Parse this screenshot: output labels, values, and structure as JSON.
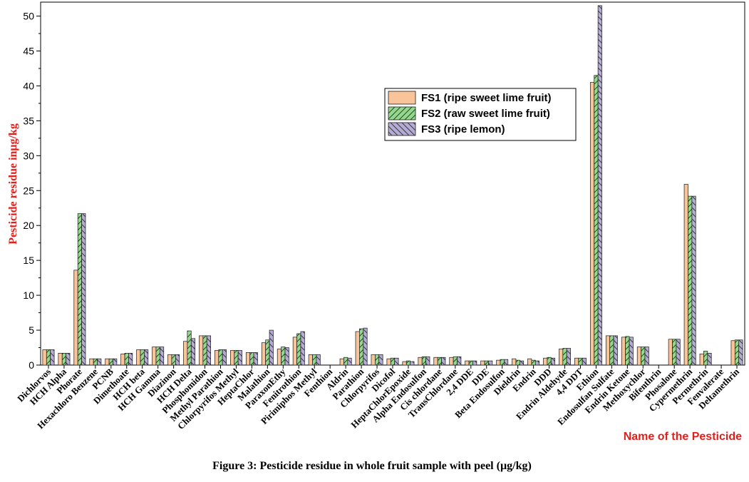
{
  "chart_data": {
    "type": "bar",
    "title": "",
    "xlabel": "Name of the Pesticide",
    "ylabel": "Pesticide residue inμg/kg",
    "ylim": [
      0,
      52
    ],
    "yticks": [
      0,
      5,
      10,
      15,
      20,
      25,
      30,
      35,
      40,
      45,
      50
    ],
    "legend_position": "top-center-right",
    "categories": [
      "Dichlorvos",
      "HCH Alpha",
      "Phorate",
      "Hexachloro Benzene",
      "PCNB",
      "Dimethoate",
      "HCH beta",
      "HCH Gamma",
      "Diazinon",
      "HCH Delta",
      "Phosphomidon",
      "Methyl Parathion",
      "Chlorpyrifos Methyl",
      "HeptaChlor",
      "Malathion",
      "ParaxonEthy",
      "Fenitrothion",
      "Pirimiphos Methyl",
      "Fenthion",
      "Aldrin",
      "Parathion",
      "Chlorpyrifos",
      "Dicofol",
      "HeptaChlorEpoxide",
      "Alpha Endosulfon",
      "Cis chlordane",
      "TransChlordane",
      "2,4 DDE",
      "DDE",
      "Beta Endosulfon",
      "Dieldrin",
      "Endrin",
      "DDD",
      "Endrin Aldehyde",
      "4,4 DDT",
      "Ethion",
      "Endosulfan Sulfate",
      "Endrin Ketone",
      "Methoxychlor",
      "Bifenthrin",
      "Phosalone",
      "Cypermethrin",
      "Permethrin",
      "Fenvalerate",
      "Deltamethrin"
    ],
    "series": [
      {
        "name": "FS1 (ripe sweet lime fruit)",
        "color": "#f9c49a",
        "values": [
          2.2,
          1.7,
          13.6,
          0.9,
          0.9,
          1.6,
          2.2,
          2.6,
          1.5,
          3.4,
          4.2,
          2.1,
          2.1,
          1.8,
          3.2,
          2.3,
          4.0,
          1.5,
          0,
          0.9,
          4.8,
          1.5,
          0.9,
          0.5,
          1.1,
          1.1,
          1.1,
          0.6,
          0.6,
          0.7,
          0.9,
          0.9,
          1.0,
          2.3,
          1.0,
          40.5,
          4.2,
          4.0,
          2.6,
          0,
          3.7,
          25.9,
          1.6,
          0,
          3.5
        ]
      },
      {
        "name": "FS2 (raw sweet lime fruit)",
        "color": "#93d88d",
        "values": [
          2.2,
          1.7,
          21.7,
          0.9,
          0.9,
          1.7,
          2.2,
          2.6,
          1.5,
          4.9,
          4.2,
          2.2,
          2.1,
          1.8,
          3.6,
          2.6,
          4.5,
          1.5,
          0,
          1.1,
          5.2,
          1.5,
          1.0,
          0.6,
          1.2,
          1.1,
          1.2,
          0.6,
          0.6,
          0.8,
          0.7,
          0.7,
          1.1,
          2.4,
          1.0,
          41.5,
          4.2,
          4.1,
          2.6,
          0,
          3.7,
          24.2,
          2.0,
          0,
          3.6
        ]
      },
      {
        "name": "FS3 (ripe lemon)",
        "color": "#b5abd6",
        "values": [
          2.2,
          1.7,
          21.7,
          0.9,
          0.9,
          1.7,
          2.2,
          2.6,
          1.5,
          3.8,
          4.2,
          2.2,
          2.1,
          1.8,
          5.0,
          2.5,
          4.8,
          1.5,
          0,
          1.0,
          5.3,
          1.5,
          1.0,
          0.5,
          1.2,
          1.1,
          1.2,
          0.6,
          0.6,
          0.8,
          0.6,
          0.6,
          1.0,
          2.4,
          1.0,
          51.5,
          4.2,
          4.0,
          2.6,
          0,
          3.7,
          24.2,
          1.7,
          0,
          3.6
        ]
      }
    ]
  },
  "caption": "Figure 3: Pesticide residue in whole fruit sample with peel (µg/kg)"
}
